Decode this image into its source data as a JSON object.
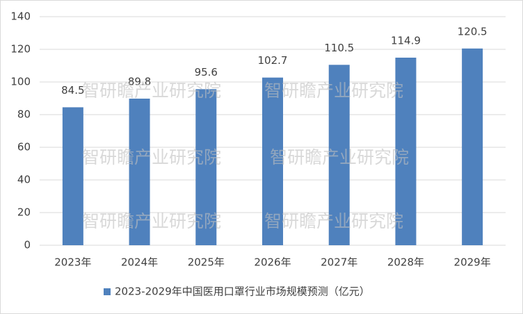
{
  "chart_data": {
    "type": "bar",
    "categories": [
      "2023年",
      "2024年",
      "2025年",
      "2026年",
      "2027年",
      "2028年",
      "2029年"
    ],
    "series": [
      {
        "name": "2023-2029年中国医用口罩行业市场规模预测（亿元）",
        "color": "#4f81bd",
        "values": [
          84.5,
          89.8,
          95.6,
          102.7,
          110.5,
          114.9,
          120.5
        ]
      }
    ],
    "ylim": [
      0,
      140
    ],
    "yticks": [
      0,
      20,
      40,
      60,
      80,
      100,
      120,
      140
    ],
    "grid": true,
    "legend": "bottom",
    "watermark": "智研瞻产业研究院"
  }
}
